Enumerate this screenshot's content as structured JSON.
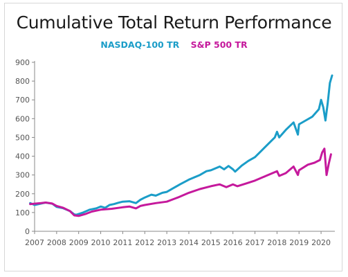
{
  "chart_data": {
    "type": "line",
    "title": "Cumulative Total Return Performance",
    "xlabel": "",
    "ylabel": "",
    "ylim": [
      0,
      900
    ],
    "xlim": [
      2007,
      2020.5
    ],
    "x_ticks": [
      "2007",
      "2008",
      "2009",
      "2010",
      "2011",
      "2012",
      "2013",
      "2014",
      "2015",
      "2016",
      "2017",
      "2018",
      "2019",
      "2020"
    ],
    "y_ticks": [
      "0",
      "100",
      "200",
      "300",
      "400",
      "500",
      "600",
      "700",
      "800",
      "900"
    ],
    "grid": false,
    "legend_position": "top-center",
    "series": [
      {
        "name": "NASDAQ-100 TR",
        "color": "#1b9dc8",
        "x": [
          2006.8,
          2007.0,
          2007.3,
          2007.5,
          2007.8,
          2008.0,
          2008.3,
          2008.6,
          2008.8,
          2008.9,
          2009.2,
          2009.5,
          2009.8,
          2010.0,
          2010.2,
          2010.4,
          2010.6,
          2010.8,
          2011.0,
          2011.3,
          2011.6,
          2011.8,
          2012.0,
          2012.3,
          2012.5,
          2012.8,
          2013.0,
          2013.3,
          2013.6,
          2014.0,
          2014.2,
          2014.5,
          2014.8,
          2015.0,
          2015.4,
          2015.6,
          2015.8,
          2016.0,
          2016.1,
          2016.4,
          2016.7,
          2017.0,
          2017.3,
          2017.6,
          2017.9,
          2018.0,
          2018.1,
          2018.4,
          2018.75,
          2018.95,
          2019.0,
          2019.3,
          2019.6,
          2019.9,
          2020.0,
          2020.1,
          2020.2,
          2020.3,
          2020.4,
          2020.5
        ],
        "values": [
          150,
          140,
          148,
          153,
          147,
          130,
          123,
          108,
          90,
          88,
          100,
          115,
          122,
          132,
          125,
          140,
          145,
          152,
          158,
          160,
          150,
          168,
          180,
          195,
          190,
          205,
          210,
          230,
          250,
          275,
          285,
          300,
          320,
          325,
          345,
          330,
          348,
          330,
          318,
          350,
          375,
          395,
          430,
          465,
          500,
          530,
          500,
          540,
          580,
          515,
          570,
          590,
          610,
          650,
          700,
          660,
          590,
          680,
          790,
          830
        ]
      },
      {
        "name": "S&P 500 TR",
        "color": "#c5199c",
        "x": [
          2006.8,
          2007.0,
          2007.3,
          2007.5,
          2007.8,
          2008.0,
          2008.3,
          2008.6,
          2008.8,
          2009.0,
          2009.3,
          2009.6,
          2010.0,
          2010.5,
          2011.0,
          2011.3,
          2011.6,
          2011.8,
          2012.0,
          2012.5,
          2013.0,
          2013.5,
          2014.0,
          2014.5,
          2015.0,
          2015.4,
          2015.7,
          2016.0,
          2016.2,
          2016.6,
          2017.0,
          2017.5,
          2018.0,
          2018.1,
          2018.4,
          2018.75,
          2018.95,
          2019.0,
          2019.4,
          2019.7,
          2019.95,
          2020.05,
          2020.15,
          2020.25,
          2020.35,
          2020.45
        ],
        "values": [
          145,
          147,
          150,
          153,
          148,
          135,
          125,
          108,
          85,
          82,
          92,
          105,
          115,
          120,
          128,
          132,
          122,
          135,
          140,
          150,
          158,
          180,
          205,
          225,
          240,
          250,
          235,
          250,
          240,
          255,
          270,
          295,
          320,
          295,
          310,
          345,
          300,
          325,
          355,
          365,
          380,
          420,
          440,
          300,
          360,
          410
        ]
      }
    ]
  }
}
